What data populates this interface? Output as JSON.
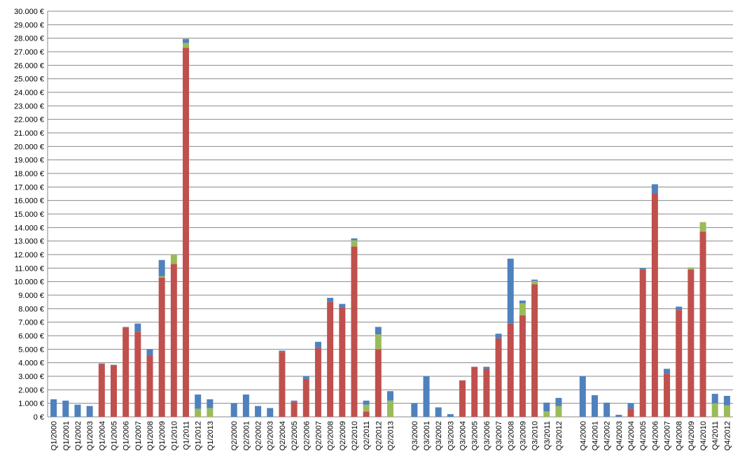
{
  "chart_data": {
    "type": "stacked_bar",
    "categories": [
      "Q1/2000",
      "Q1/2001",
      "Q1/2002",
      "Q1/2003",
      "Q1/2004",
      "Q1/2005",
      "Q1/2006",
      "Q1/2007",
      "Q1/2008",
      "Q1/2009",
      "Q1/2010",
      "Q1/2011",
      "Q1/2012",
      "Q1/2013",
      null,
      "Q2/2000",
      "Q2/2001",
      "Q2/2002",
      "Q2/2003",
      "Q2/2004",
      "Q2/2005",
      "Q2/2006",
      "Q2/2007",
      "Q2/2008",
      "Q2/2009",
      "Q2/2010",
      "Q2/2011",
      "Q2/2012",
      "Q2/2013",
      null,
      "Q3/2000",
      "Q3/2001",
      "Q3/2002",
      "Q3/2003",
      "Q3/2004",
      "Q3/2005",
      "Q3/2006",
      "Q3/2007",
      "Q3/2008",
      "Q3/2009",
      "Q3/2010",
      "Q3/2011",
      "Q3/2012",
      null,
      "Q4/2000",
      "Q4/2001",
      "Q4/2002",
      "Q4/2003",
      "Q4/2004",
      "Q4/2005",
      "Q4/2006",
      "Q4/2007",
      "Q4/2008",
      "Q4/2009",
      "Q4/2010",
      "Q4/2011",
      "Q4/2012"
    ],
    "series": [
      {
        "color": "#c0504d",
        "values": [
          0,
          0,
          0,
          0,
          3900,
          3800,
          6600,
          6300,
          4500,
          10300,
          11300,
          27300,
          0,
          0,
          null,
          0,
          0,
          0,
          0,
          4800,
          1100,
          2800,
          5100,
          8500,
          8100,
          12600,
          400,
          5000,
          0,
          null,
          0,
          0,
          0,
          0,
          2700,
          3700,
          3550,
          5800,
          6900,
          7500,
          9800,
          0,
          0,
          null,
          0,
          0,
          0,
          0,
          600,
          10900,
          16500,
          3200,
          7900,
          10900,
          13700,
          0,
          0
        ]
      },
      {
        "color": "#9bbb59",
        "values": [
          0,
          0,
          0,
          0,
          0,
          0,
          0,
          0,
          0,
          100,
          700,
          350,
          600,
          650,
          null,
          0,
          0,
          0,
          0,
          0,
          0,
          0,
          0,
          0,
          0,
          450,
          500,
          1100,
          1200,
          null,
          0,
          0,
          0,
          0,
          0,
          0,
          0,
          0,
          0,
          900,
          250,
          400,
          800,
          null,
          0,
          0,
          0,
          0,
          0,
          0,
          0,
          0,
          0,
          150,
          700,
          1000,
          850
        ]
      },
      {
        "color": "#4f81bd",
        "values": [
          1300,
          1200,
          900,
          800,
          50,
          50,
          50,
          600,
          500,
          1200,
          0,
          300,
          1050,
          650,
          null,
          1000,
          1650,
          800,
          650,
          100,
          100,
          200,
          450,
          300,
          250,
          150,
          300,
          550,
          700,
          null,
          1000,
          3000,
          700,
          200,
          0,
          0,
          150,
          350,
          4800,
          200,
          100,
          650,
          600,
          null,
          3000,
          1600,
          1050,
          150,
          400,
          100,
          700,
          350,
          250,
          0,
          0,
          700,
          700
        ]
      }
    ],
    "ylim": [
      0,
      30000
    ],
    "yticks": [
      {
        "value": 0,
        "label": "0 €"
      },
      {
        "value": 1000,
        "label": "1.000 €"
      },
      {
        "value": 2000,
        "label": "2.000 €"
      },
      {
        "value": 3000,
        "label": "3.000 €"
      },
      {
        "value": 4000,
        "label": "4.000 €"
      },
      {
        "value": 5000,
        "label": "5.000 €"
      },
      {
        "value": 6000,
        "label": "6.000 €"
      },
      {
        "value": 7000,
        "label": "7.000 €"
      },
      {
        "value": 8000,
        "label": "8.000 €"
      },
      {
        "value": 9000,
        "label": "9.000 €"
      },
      {
        "value": 10000,
        "label": "10.000 €"
      },
      {
        "value": 11000,
        "label": "11.000 €"
      },
      {
        "value": 12000,
        "label": "12.000 €"
      },
      {
        "value": 13000,
        "label": "13.000 €"
      },
      {
        "value": 14000,
        "label": "14.000 €"
      },
      {
        "value": 15000,
        "label": "15.000 €"
      },
      {
        "value": 16000,
        "label": "16.000 €"
      },
      {
        "value": 17000,
        "label": "17.000 €"
      },
      {
        "value": 18000,
        "label": "18.000 €"
      },
      {
        "value": 19000,
        "label": "19.000 €"
      },
      {
        "value": 20000,
        "label": "20.000 €"
      },
      {
        "value": 21000,
        "label": "21.000 €"
      },
      {
        "value": 22000,
        "label": "22.000 €"
      },
      {
        "value": 23000,
        "label": "23.000 €"
      },
      {
        "value": 24000,
        "label": "24.000 €"
      },
      {
        "value": 25000,
        "label": "25.000 €"
      },
      {
        "value": 26000,
        "label": "26.000 €"
      },
      {
        "value": 27000,
        "label": "27.000 €"
      },
      {
        "value": 28000,
        "label": "28.000 €"
      },
      {
        "value": 29000,
        "label": "29.000 €"
      },
      {
        "value": 30000,
        "label": "30.000 €"
      }
    ],
    "grid": true
  }
}
